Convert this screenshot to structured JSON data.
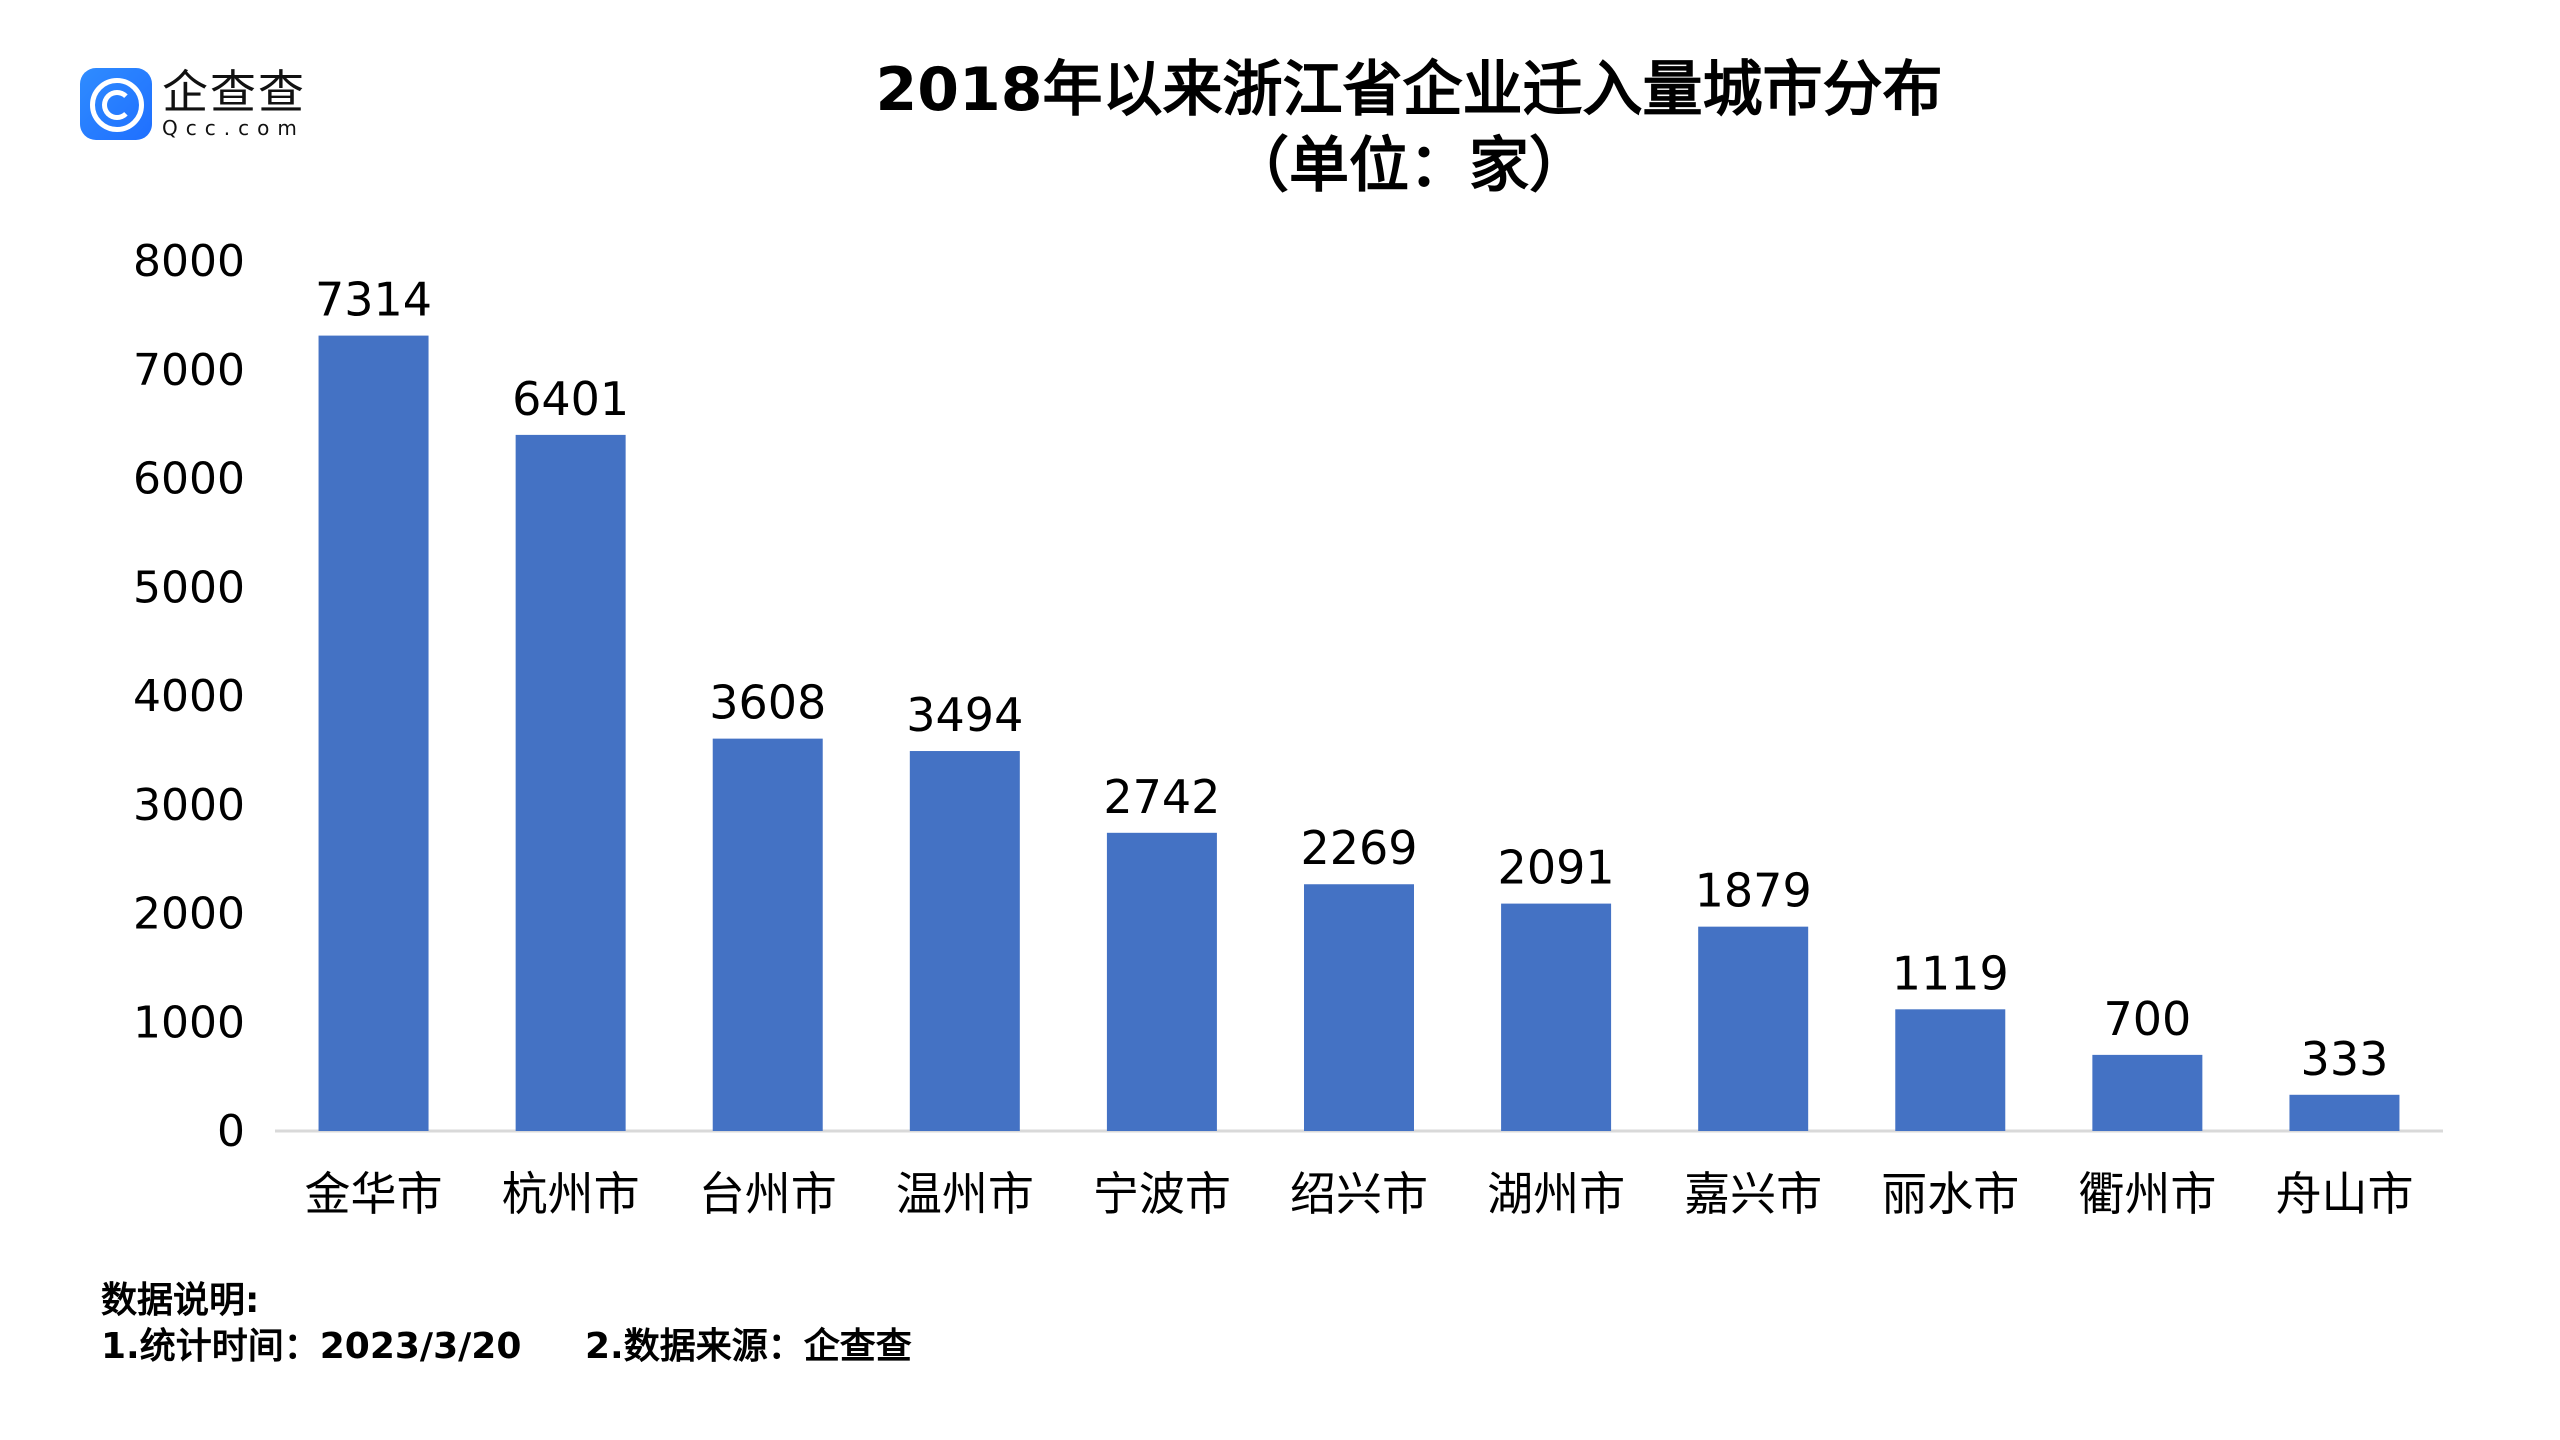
{
  "logo": {
    "cn": "企查查",
    "en": "Qcc.com"
  },
  "chart_data": {
    "type": "bar",
    "title": "2018年以来浙江省企业迁入量城市分布",
    "subtitle": "（单位：家）",
    "categories": [
      "金华市",
      "杭州市",
      "台州市",
      "温州市",
      "宁波市",
      "绍兴市",
      "湖州市",
      "嘉兴市",
      "丽水市",
      "衢州市",
      "舟山市"
    ],
    "values": [
      7314,
      6401,
      3608,
      3494,
      2742,
      2269,
      2091,
      1879,
      1119,
      700,
      333
    ],
    "yticks": [
      0,
      1000,
      2000,
      3000,
      4000,
      5000,
      6000,
      7000,
      8000
    ],
    "ylim": [
      0,
      8000
    ],
    "grid": false,
    "bar_color": "#4472C4",
    "data_labels": true
  },
  "footer": {
    "heading": "数据说明:",
    "item1": "1.统计时间：2023/3/20",
    "item2": "2.数据来源：企查查"
  }
}
